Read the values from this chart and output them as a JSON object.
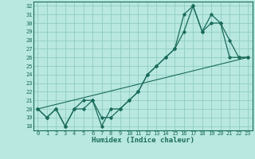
{
  "xlabel": "Humidex (Indice chaleur)",
  "xlim": [
    -0.5,
    23.5
  ],
  "ylim": [
    17.5,
    32.5
  ],
  "yticks": [
    18,
    19,
    20,
    21,
    22,
    23,
    24,
    25,
    26,
    27,
    28,
    29,
    30,
    31,
    32
  ],
  "xticks": [
    0,
    1,
    2,
    3,
    4,
    5,
    6,
    7,
    8,
    9,
    10,
    11,
    12,
    13,
    14,
    15,
    16,
    17,
    18,
    19,
    20,
    21,
    22,
    23
  ],
  "bg_color": "#b8e8e0",
  "grid_color": "#90ccc4",
  "line_color": "#1a6b5a",
  "line1_x": [
    0,
    1,
    2,
    3,
    4,
    5,
    6,
    7,
    8,
    9,
    10,
    11,
    12,
    13,
    14,
    15,
    16,
    17,
    18,
    19,
    20,
    21,
    22,
    23
  ],
  "line1_y": [
    20,
    19,
    20,
    18,
    20,
    21,
    21,
    18,
    20,
    20,
    21,
    22,
    24,
    25,
    26,
    27,
    29,
    32,
    29,
    31,
    30,
    28,
    26,
    26
  ],
  "line2_x": [
    0,
    1,
    2,
    3,
    4,
    5,
    6,
    7,
    8,
    9,
    10,
    11,
    12,
    13,
    14,
    15,
    16,
    17,
    18,
    19,
    20,
    21,
    22,
    23
  ],
  "line2_y": [
    20,
    19,
    20,
    18,
    20,
    20,
    21,
    19,
    19,
    20,
    21,
    22,
    24,
    25,
    26,
    27,
    31,
    32,
    29,
    30,
    30,
    26,
    26,
    26
  ],
  "line3_x": [
    0,
    23
  ],
  "line3_y": [
    20,
    26
  ]
}
